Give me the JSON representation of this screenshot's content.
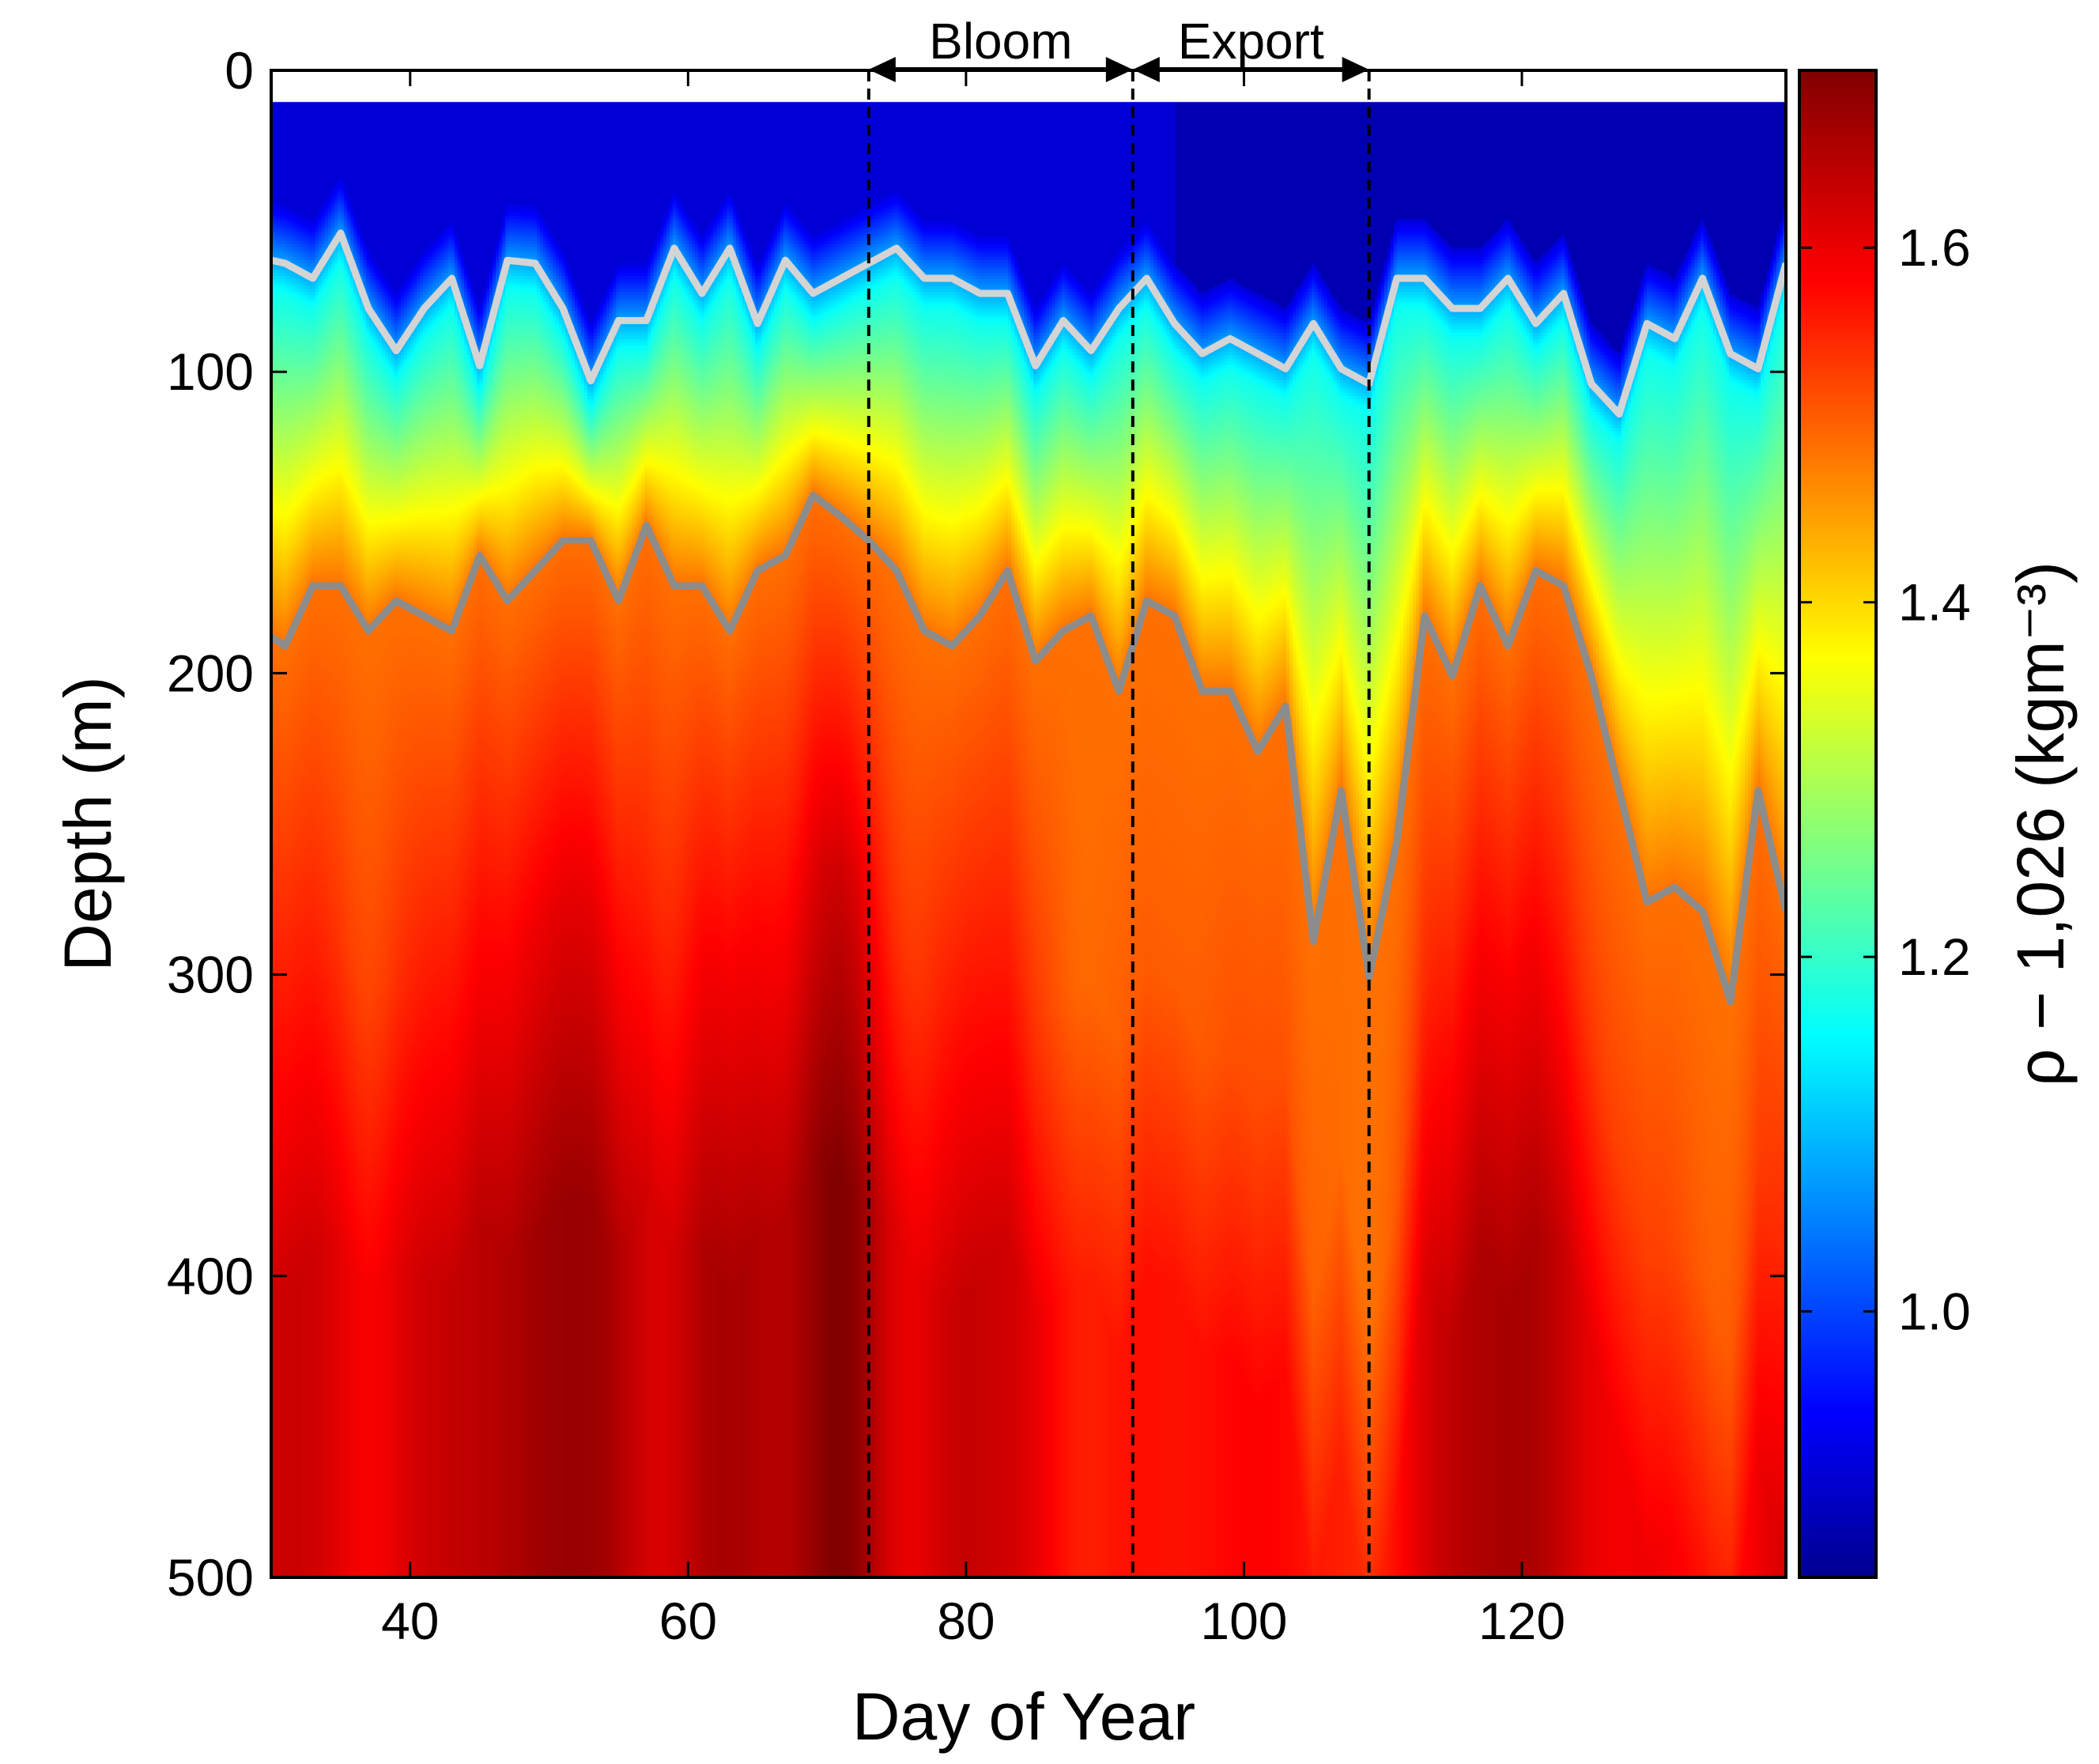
{
  "chart_data": {
    "type": "heatmap",
    "xlabel": "Day of Year",
    "ylabel": "Depth (m)",
    "colorbar_label": "ρ − 1,026 (kgm⁻³)",
    "xlim": [
      30,
      139
    ],
    "ylim": [
      500,
      0
    ],
    "x_ticks": [
      40,
      60,
      80,
      100,
      120
    ],
    "y_ticks": [
      0,
      100,
      200,
      300,
      400,
      500
    ],
    "data_top_depth": 10,
    "colorbar": {
      "colormap": "jet",
      "range": [
        0.85,
        1.7
      ],
      "ticks": [
        "1.0",
        "1.2",
        "1.4",
        "1.6"
      ],
      "tick_values": [
        1.0,
        1.2,
        1.4,
        1.6
      ]
    },
    "phases": [
      {
        "label": "Bloom",
        "start": 73,
        "end": 92
      },
      {
        "label": "Export",
        "start": 92,
        "end": 109
      }
    ],
    "phase_boundaries": [
      73,
      92,
      109
    ],
    "series": [
      {
        "color": "#d4d4d4",
        "x": [
          30,
          31,
          33,
          35,
          37,
          39,
          41,
          43,
          45,
          47,
          49,
          51,
          53,
          55,
          57,
          59,
          61,
          63,
          65,
          67,
          69,
          71,
          73,
          75,
          77,
          79,
          81,
          83,
          85,
          87,
          89,
          91,
          93,
          95,
          97,
          99,
          101,
          103,
          105,
          107,
          109,
          111,
          113,
          115,
          117,
          119,
          121,
          123,
          125,
          127,
          129,
          131,
          133,
          135,
          137,
          139
        ],
        "y": [
          63,
          64,
          69,
          54,
          79,
          93,
          79,
          69,
          98,
          63,
          64,
          79,
          103,
          83,
          83,
          59,
          74,
          59,
          84,
          63,
          74,
          69,
          64,
          59,
          69,
          69,
          74,
          74,
          98,
          83,
          93,
          79,
          69,
          84,
          94,
          89,
          94,
          99,
          84,
          99,
          104,
          69,
          69,
          79,
          79,
          69,
          84,
          74,
          104,
          114,
          84,
          89,
          69,
          94,
          99,
          64
        ]
      },
      {
        "color": "#8c8c8c",
        "x": [
          30,
          31,
          33,
          35,
          37,
          39,
          41,
          43,
          45,
          47,
          49,
          51,
          53,
          55,
          57,
          59,
          61,
          63,
          65,
          67,
          69,
          71,
          73,
          75,
          77,
          79,
          81,
          83,
          85,
          87,
          89,
          91,
          93,
          95,
          97,
          99,
          101,
          103,
          105,
          107,
          109,
          111,
          113,
          115,
          117,
          119,
          121,
          123,
          125,
          127,
          129,
          131,
          133,
          135,
          137,
          139
        ],
        "y": [
          188,
          191,
          171,
          171,
          186,
          176,
          181,
          186,
          161,
          176,
          166,
          156,
          156,
          176,
          151,
          171,
          171,
          186,
          166,
          161,
          141,
          148,
          156,
          166,
          186,
          191,
          181,
          166,
          196,
          186,
          181,
          206,
          176,
          181,
          206,
          206,
          226,
          211,
          289,
          239,
          301,
          256,
          181,
          201,
          171,
          191,
          166,
          171,
          201,
          239,
          276,
          271,
          279,
          309,
          239,
          279
        ]
      }
    ],
    "field": {
      "surface_value": 0.92,
      "peak_value": 1.64,
      "deep_value": 1.59,
      "warm_patches": [
        {
          "day": 52,
          "width": 6,
          "amp": 0.04
        },
        {
          "day": 62,
          "width": 4,
          "amp": 0.03
        },
        {
          "day": 71,
          "width": 3,
          "amp": 0.06
        },
        {
          "day": 78,
          "width": 3,
          "amp": 0.015
        },
        {
          "day": 120,
          "width": 5,
          "amp": 0.03
        }
      ],
      "cool_patches": [
        {
          "day": 37,
          "width": 3,
          "amp": 0.04
        },
        {
          "day": 58,
          "width": 3,
          "amp": 0.04
        },
        {
          "day": 76,
          "width": 3,
          "amp": 0.04
        },
        {
          "day": 88,
          "width": 3,
          "amp": 0.04
        },
        {
          "day": 95,
          "width": 8,
          "amp": 0.06
        },
        {
          "day": 106,
          "width": 4,
          "amp": 0.05
        },
        {
          "day": 110,
          "width": 3,
          "amp": 0.05
        },
        {
          "day": 126,
          "width": 4,
          "amp": 0.04
        },
        {
          "day": 134,
          "width": 4,
          "amp": 0.06
        }
      ]
    }
  }
}
